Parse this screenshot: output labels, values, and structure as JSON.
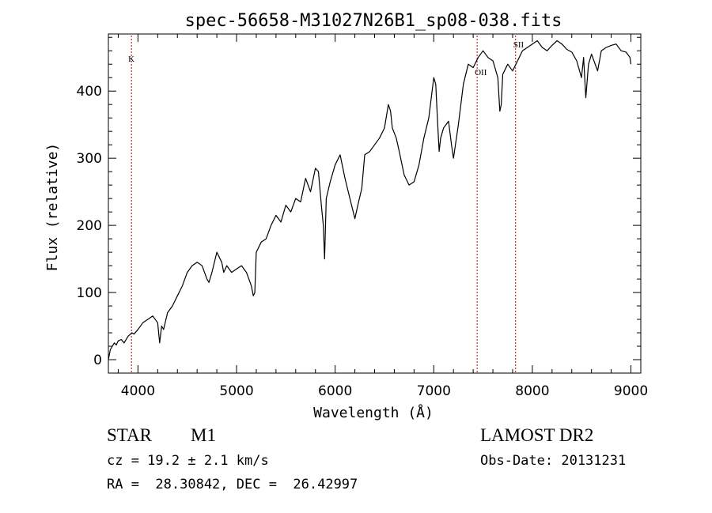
{
  "colors": {
    "spectrum": "#000000",
    "line_marker": "#c00000",
    "axes": "#000000"
  },
  "chart_data": {
    "type": "line",
    "title": "spec-56658-M31027N26B1_sp08-038.fits",
    "xlabel": "Wavelength (Å)",
    "ylabel": "Flux (relative)",
    "xlim": [
      3700,
      9100
    ],
    "ylim": [
      -20,
      485
    ],
    "xticks": [
      4000,
      5000,
      6000,
      7000,
      8000,
      9000
    ],
    "yticks": [
      0,
      100,
      200,
      300,
      400
    ],
    "grid": false,
    "series": [
      {
        "x": [
          3700,
          3720,
          3740,
          3760,
          3780,
          3800,
          3830,
          3860,
          3900,
          3940,
          3960,
          4000,
          4050,
          4100,
          4150,
          4200,
          4220,
          4240,
          4260,
          4300,
          4350,
          4400,
          4450,
          4500,
          4550,
          4600,
          4650,
          4700,
          4720,
          4750,
          4800,
          4850,
          4870,
          4900,
          4950,
          5000,
          5050,
          5100,
          5150,
          5170,
          5185,
          5200,
          5250,
          5300,
          5350,
          5400,
          5450,
          5500,
          5550,
          5600,
          5650,
          5700,
          5750,
          5800,
          5830,
          5860,
          5880,
          5893,
          5910,
          5950,
          6000,
          6050,
          6100,
          6150,
          6200,
          6230,
          6270,
          6300,
          6350,
          6400,
          6450,
          6500,
          6540,
          6562,
          6580,
          6620,
          6650,
          6700,
          6750,
          6800,
          6850,
          6900,
          6950,
          7000,
          7020,
          7040,
          7055,
          7070,
          7100,
          7150,
          7180,
          7200,
          7250,
          7300,
          7350,
          7400,
          7450,
          7500,
          7550,
          7600,
          7650,
          7670,
          7685,
          7700,
          7750,
          7800,
          7850,
          7900,
          7950,
          8000,
          8050,
          8100,
          8150,
          8200,
          8250,
          8300,
          8350,
          8400,
          8450,
          8498,
          8520,
          8542,
          8570,
          8600,
          8662,
          8700,
          8750,
          8800,
          8850,
          8900,
          8950,
          8990,
          9000
        ],
        "y": [
          0,
          15,
          20,
          25,
          22,
          28,
          30,
          25,
          35,
          40,
          38,
          45,
          55,
          60,
          65,
          55,
          25,
          50,
          45,
          70,
          80,
          95,
          110,
          130,
          140,
          145,
          140,
          120,
          115,
          130,
          160,
          145,
          130,
          140,
          130,
          135,
          140,
          130,
          110,
          95,
          100,
          160,
          175,
          180,
          200,
          215,
          205,
          230,
          220,
          240,
          235,
          270,
          250,
          285,
          280,
          230,
          200,
          150,
          240,
          265,
          290,
          305,
          270,
          240,
          210,
          230,
          255,
          305,
          310,
          320,
          330,
          345,
          380,
          370,
          345,
          330,
          310,
          275,
          260,
          265,
          290,
          330,
          360,
          420,
          410,
          350,
          310,
          330,
          345,
          355,
          320,
          300,
          350,
          410,
          440,
          435,
          450,
          460,
          450,
          445,
          420,
          370,
          380,
          425,
          440,
          430,
          445,
          460,
          465,
          470,
          475,
          465,
          460,
          468,
          475,
          470,
          462,
          458,
          445,
          420,
          450,
          390,
          440,
          455,
          430,
          460,
          465,
          468,
          470,
          460,
          458,
          450,
          440
        ]
      }
    ],
    "annotations": [
      {
        "text": "K",
        "x": 3934
      },
      {
        "text": "OII",
        "x": 7440
      },
      {
        "text": "SII",
        "x": 7830
      }
    ]
  },
  "info": {
    "object_class": "STAR",
    "subclass": "M1",
    "survey": "LAMOST DR2",
    "cz": "cz = 19.2 ± 2.1 km/s",
    "obs_date": "Obs-Date: 20131231",
    "coords": "RA =  28.30842, DEC =  26.42997"
  }
}
